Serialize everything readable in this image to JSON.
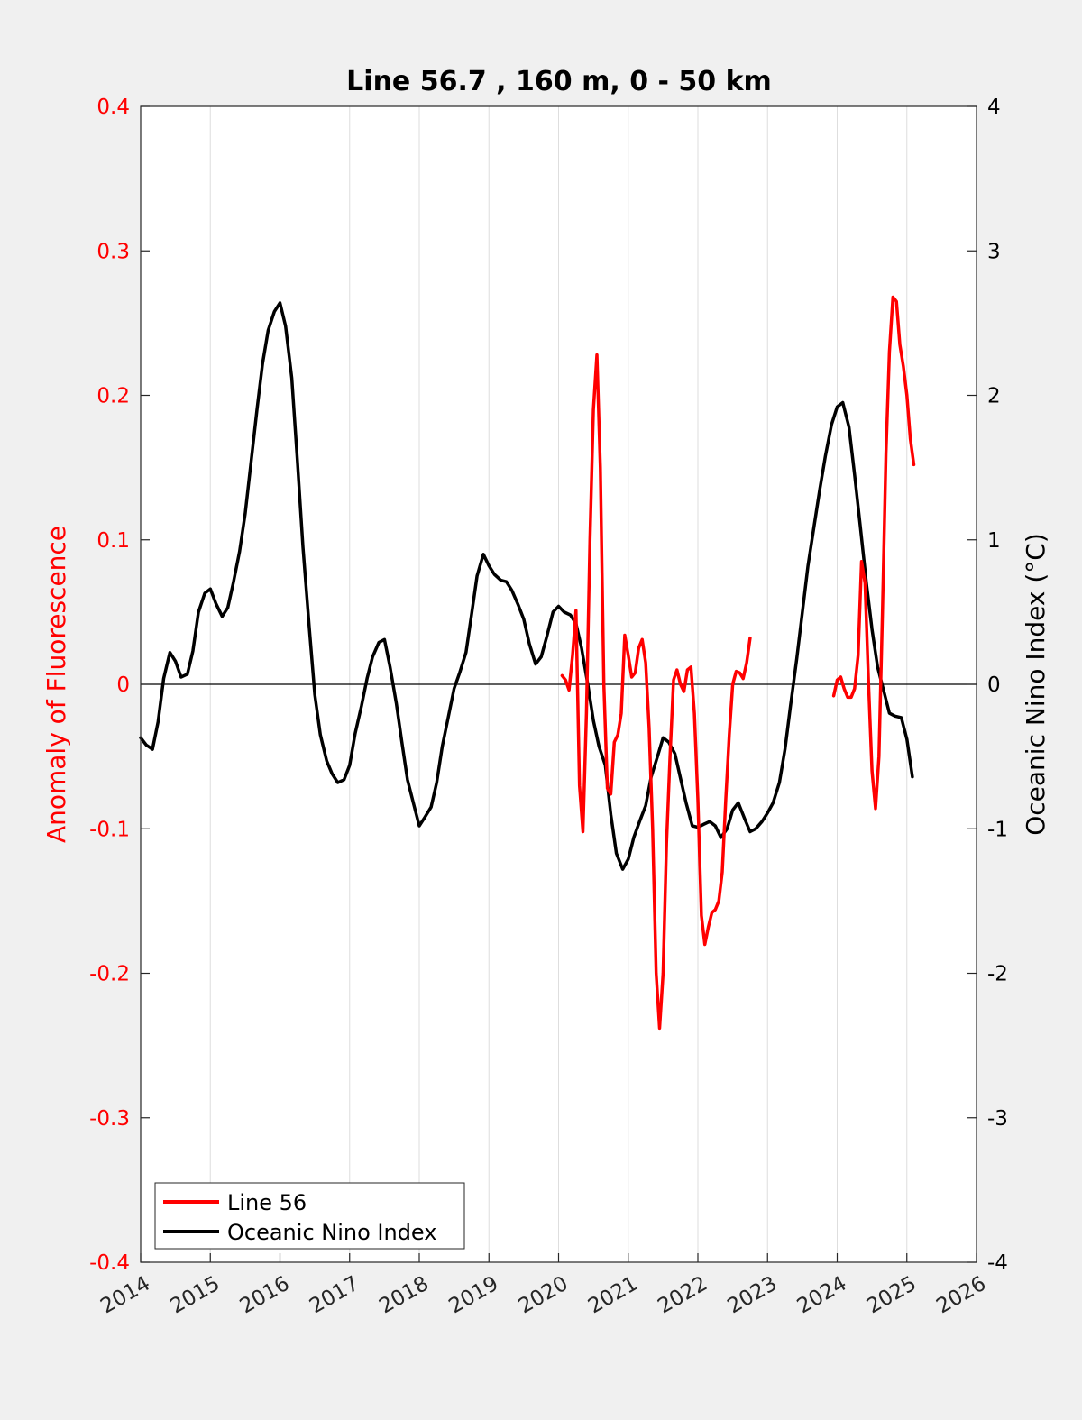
{
  "chart_data": {
    "type": "line",
    "title": "Line 56.7 , 160 m, 0 - 50 km",
    "xlabel": "",
    "ylabel_left": "Anomaly of Fluorescence",
    "ylabel_right": "Oceanic Nino Index (°C)",
    "xlim": [
      2014,
      2026
    ],
    "ylim_left": [
      -0.4,
      0.4
    ],
    "ylim_right": [
      -4,
      4
    ],
    "x_ticks": [
      2014,
      2015,
      2016,
      2017,
      2018,
      2019,
      2020,
      2021,
      2022,
      2023,
      2024,
      2025,
      2026
    ],
    "x_tick_labels": [
      "2014",
      "2015",
      "2016",
      "2017",
      "2018",
      "2019",
      "2020",
      "2021",
      "2022",
      "2023",
      "2024",
      "2025",
      "2026"
    ],
    "y_left_tick_labels": [
      "-0.4",
      "-0.3",
      "-0.2",
      "-0.1",
      "0",
      "0.1",
      "0.2",
      "0.3",
      "0.4"
    ],
    "y_right_tick_labels": [
      "-4",
      "-3",
      "-2",
      "-1",
      "0",
      "1",
      "2",
      "3",
      "4"
    ],
    "grid": "x-only",
    "legend_position": "bottom-left",
    "colors": {
      "line56": "#ff0000",
      "oni": "#000000",
      "left_axis": "#ff0000",
      "right_axis": "#000000"
    },
    "series": [
      {
        "name": "Line 56",
        "axis": "left",
        "x": [
          2020.05,
          2020.1,
          2020.15,
          2020.2,
          2020.25,
          2020.3,
          2020.35,
          2020.4,
          2020.45,
          2020.5,
          2020.55,
          2020.6,
          2020.65,
          2020.7,
          2020.75,
          2020.8,
          2020.85,
          2020.9,
          2020.95,
          2021.0,
          2021.05,
          2021.1,
          2021.15,
          2021.2,
          2021.25,
          2021.3,
          2021.35,
          2021.4,
          2021.45,
          2021.5,
          2021.55,
          2021.6,
          2021.65,
          2021.7,
          2021.75,
          2021.8,
          2021.85,
          2021.9,
          2021.95,
          2022.0,
          2022.05,
          2022.1,
          2022.15,
          2022.2,
          2022.25,
          2022.3,
          2022.35,
          2022.4,
          2022.45,
          2022.5,
          2022.55,
          2022.6,
          2022.65,
          2022.7,
          2022.75,
          2022.8,
          2022.85,
          2022.9,
          2022.95,
          2023.0,
          2023.05
        ],
        "values": [
          0.006,
          0.003,
          -0.004,
          0.02,
          0.051,
          -0.07,
          -0.102,
          -0.02,
          0.1,
          0.19,
          0.228,
          0.15,
          0.0,
          -0.072,
          -0.076,
          -0.04,
          -0.035,
          -0.02,
          0.034,
          0.02,
          0.005,
          0.008,
          0.025,
          0.031,
          0.015,
          -0.03,
          -0.1,
          -0.2,
          -0.238,
          -0.2,
          -0.11,
          -0.05,
          0.003,
          0.01,
          0.0,
          -0.005,
          0.01,
          0.012,
          -0.02,
          -0.08,
          -0.16,
          -0.18,
          -0.168,
          -0.158,
          -0.156,
          -0.15,
          -0.13,
          -0.08,
          -0.035,
          0.0,
          0.009,
          0.008,
          0.004,
          0.015,
          0.032,
          null,
          null,
          null,
          null,
          null,
          null
        ]
      },
      {
        "name": "Line 56",
        "axis": "left",
        "legend": false,
        "x": [
          2023.95,
          2024.0,
          2024.05,
          2024.1,
          2024.15,
          2024.2,
          2024.25,
          2024.3,
          2024.35,
          2024.4,
          2024.45,
          2024.5,
          2024.55,
          2024.6,
          2024.65,
          2024.7,
          2024.75,
          2024.8,
          2024.85,
          2024.9,
          2024.95,
          2025.0,
          2025.05,
          2025.1
        ],
        "values": [
          -0.008,
          0.003,
          0.005,
          -0.003,
          -0.009,
          -0.009,
          -0.003,
          0.02,
          0.085,
          0.07,
          -0.0,
          -0.06,
          -0.086,
          -0.05,
          0.05,
          0.16,
          0.23,
          0.268,
          0.265,
          0.235,
          0.22,
          0.2,
          0.17,
          0.152
        ]
      },
      {
        "name": "Oceanic Nino Index",
        "axis": "right",
        "x": [
          2014.0,
          2014.08,
          2014.17,
          2014.25,
          2014.33,
          2014.42,
          2014.5,
          2014.58,
          2014.67,
          2014.75,
          2014.83,
          2014.92,
          2015.0,
          2015.08,
          2015.17,
          2015.25,
          2015.33,
          2015.42,
          2015.5,
          2015.58,
          2015.67,
          2015.75,
          2015.83,
          2015.92,
          2016.0,
          2016.08,
          2016.17,
          2016.25,
          2016.33,
          2016.42,
          2016.5,
          2016.58,
          2016.67,
          2016.75,
          2016.83,
          2016.92,
          2017.0,
          2017.08,
          2017.17,
          2017.25,
          2017.33,
          2017.42,
          2017.5,
          2017.58,
          2017.67,
          2017.75,
          2017.83,
          2017.92,
          2018.0,
          2018.08,
          2018.17,
          2018.25,
          2018.33,
          2018.42,
          2018.5,
          2018.58,
          2018.67,
          2018.75,
          2018.83,
          2018.92,
          2019.0,
          2019.08,
          2019.17,
          2019.25,
          2019.33,
          2019.42,
          2019.5,
          2019.58,
          2019.67,
          2019.75,
          2019.83,
          2019.92,
          2020.0,
          2020.08,
          2020.17,
          2020.25,
          2020.33,
          2020.42,
          2020.5,
          2020.58,
          2020.67,
          2020.75,
          2020.83,
          2020.92,
          2021.0,
          2021.08,
          2021.17,
          2021.25,
          2021.33,
          2021.42,
          2021.5,
          2021.58,
          2021.67,
          2021.75,
          2021.83,
          2021.92,
          2022.0,
          2022.08,
          2022.17,
          2022.25,
          2022.33,
          2022.42,
          2022.5,
          2022.58,
          2022.67,
          2022.75,
          2022.83,
          2022.92,
          2023.0,
          2023.08,
          2023.17,
          2023.25,
          2023.33,
          2023.42,
          2023.5,
          2023.58,
          2023.67,
          2023.75,
          2023.83,
          2023.92,
          2024.0,
          2024.08,
          2024.17,
          2024.25,
          2024.33,
          2024.42,
          2024.5,
          2024.58,
          2024.67,
          2024.75,
          2024.83,
          2024.92,
          2025.0,
          2025.08
        ],
        "values": [
          -0.37,
          -0.42,
          -0.45,
          -0.26,
          0.04,
          0.22,
          0.16,
          0.05,
          0.07,
          0.23,
          0.5,
          0.63,
          0.66,
          0.56,
          0.47,
          0.53,
          0.7,
          0.92,
          1.18,
          1.52,
          1.9,
          2.22,
          2.45,
          2.58,
          2.64,
          2.48,
          2.12,
          1.55,
          0.95,
          0.4,
          -0.07,
          -0.35,
          -0.53,
          -0.62,
          -0.68,
          -0.66,
          -0.56,
          -0.34,
          -0.15,
          0.04,
          0.19,
          0.29,
          0.31,
          0.12,
          -0.13,
          -0.4,
          -0.66,
          -0.83,
          -0.98,
          -0.92,
          -0.85,
          -0.68,
          -0.43,
          -0.22,
          -0.03,
          0.08,
          0.22,
          0.48,
          0.75,
          0.9,
          0.82,
          0.76,
          0.72,
          0.71,
          0.65,
          0.55,
          0.45,
          0.28,
          0.14,
          0.19,
          0.33,
          0.5,
          0.54,
          0.5,
          0.48,
          0.42,
          0.25,
          0.0,
          -0.25,
          -0.43,
          -0.56,
          -0.9,
          -1.17,
          -1.28,
          -1.21,
          -1.06,
          -0.94,
          -0.84,
          -0.64,
          -0.5,
          -0.37,
          -0.4,
          -0.48,
          -0.65,
          -0.82,
          -0.98,
          -0.99,
          -0.97,
          -0.95,
          -0.98,
          -1.06,
          -1.0,
          -0.87,
          -0.82,
          -0.93,
          -1.02,
          -1.0,
          -0.95,
          -0.89,
          -0.82,
          -0.68,
          -0.45,
          -0.15,
          0.18,
          0.5,
          0.82,
          1.1,
          1.35,
          1.58,
          1.8,
          1.92,
          1.95,
          1.78,
          1.45,
          1.1,
          0.7,
          0.38,
          0.12,
          -0.05,
          -0.2,
          -0.22,
          -0.23,
          -0.38,
          -0.64
        ],
        "notes": ""
      }
    ],
    "legend": [
      {
        "label": "Line 56",
        "color": "#ff0000"
      },
      {
        "label": "Oceanic Nino Index",
        "color": "#000000"
      }
    ]
  }
}
